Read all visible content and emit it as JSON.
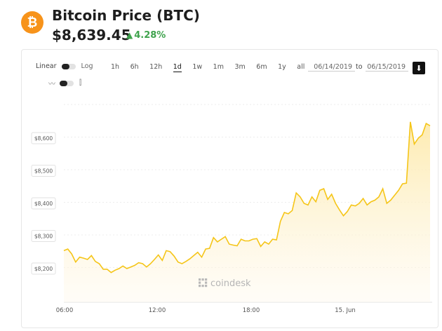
{
  "header": {
    "coin_symbol_glyph": "₿",
    "title": "Bitcoin Price (BTC)",
    "price": "$8,639.45",
    "change_arrow": "▲",
    "change": "4.28%",
    "brand_color": "#f7931a",
    "change_color": "#3fa34d"
  },
  "controls": {
    "scale_linear": "Linear",
    "scale_log": "Log",
    "ranges": [
      "1h",
      "6h",
      "12h",
      "1d",
      "1w",
      "1m",
      "3m",
      "6m",
      "1y",
      "all"
    ],
    "active_range": "1d",
    "date_from": "06/14/2019",
    "to_label": "to",
    "date_to": "06/15/2019",
    "download_glyph": "⬇",
    "line_icon_glyph": "〰",
    "candle_icon_glyph": "⫿"
  },
  "watermark": "coindesk",
  "chart_data": {
    "type": "area",
    "color": "#f5c518",
    "y_ticks": [
      "$8,200",
      "$8,300",
      "$8,400",
      "$8,500",
      "$8,600"
    ],
    "y_tick_values": [
      8200,
      8300,
      8400,
      8500,
      8600
    ],
    "x_ticks": [
      "06:00",
      "12:00",
      "18:00",
      "15. Jun"
    ],
    "ylim": [
      8100,
      8650
    ],
    "values": [
      8255,
      8260,
      8245,
      8220,
      8235,
      8232,
      8228,
      8240,
      8222,
      8215,
      8198,
      8198,
      8188,
      8195,
      8200,
      8208,
      8200,
      8205,
      8210,
      8218,
      8215,
      8205,
      8215,
      8228,
      8242,
      8225,
      8255,
      8252,
      8238,
      8220,
      8215,
      8222,
      8230,
      8240,
      8250,
      8235,
      8260,
      8262,
      8295,
      8282,
      8290,
      8298,
      8275,
      8272,
      8270,
      8290,
      8285,
      8285,
      8290,
      8292,
      8268,
      8282,
      8275,
      8290,
      8288,
      8345,
      8372,
      8368,
      8378,
      8432,
      8420,
      8400,
      8395,
      8420,
      8405,
      8440,
      8445,
      8412,
      8428,
      8400,
      8380,
      8362,
      8375,
      8395,
      8392,
      8400,
      8415,
      8395,
      8405,
      8410,
      8420,
      8445,
      8400,
      8410,
      8425,
      8440,
      8460,
      8462,
      8650,
      8582,
      8600,
      8610,
      8645,
      8638
    ]
  }
}
